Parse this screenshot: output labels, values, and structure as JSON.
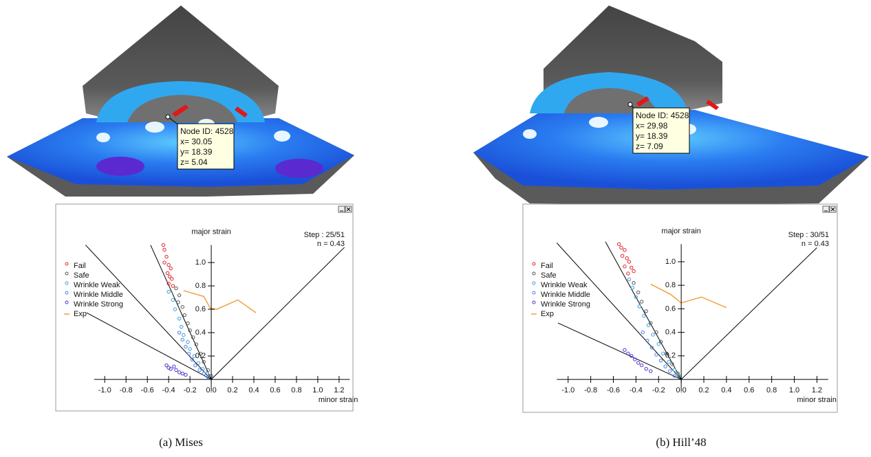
{
  "renders": [
    {
      "tooltip": [
        "Node ID: 4528",
        "x= 30.05",
        "y= 18.39",
        "z= 5.04"
      ]
    },
    {
      "tooltip": [
        "Node ID: 4528",
        "x= 29.98",
        "y= 18.39",
        "z= 7.09"
      ]
    }
  ],
  "captions": [
    "(a) Mises",
    "(b) Hill’48"
  ],
  "chart_data": [
    {
      "type": "scatter",
      "x_label": "minor strain",
      "y_label": "major strain",
      "annotations": [
        "Step : 25/51",
        "n = 0.43"
      ],
      "xlim": [
        -1.46,
        1.33
      ],
      "ylim": [
        -0.27,
        1.5
      ],
      "xticks": [
        {
          "value": -1,
          "label": "-1.0"
        },
        -0.8,
        -0.6,
        -0.4,
        -0.2,
        {
          "value": 0,
          "label": "0.0"
        },
        0.2,
        0.4,
        0.6,
        0.8,
        {
          "value": 1,
          "label": "1.0"
        },
        1.2
      ],
      "yticks": [
        0.2,
        0.4,
        0.6,
        0.8,
        {
          "value": 1,
          "label": "1.0"
        }
      ],
      "reference_lines": [
        {
          "x": [
            0,
            1.25
          ],
          "y": [
            0,
            1.13
          ]
        },
        {
          "x": [
            0,
            -0.57
          ],
          "y": [
            0,
            1.15
          ]
        },
        {
          "x": [
            0,
            -1.18
          ],
          "y": [
            0,
            1.15
          ]
        },
        {
          "x": [
            0,
            -1.17
          ],
          "y": [
            0,
            0.57
          ]
        }
      ],
      "series": [
        {
          "name": "Fail",
          "color": "#e0202a",
          "x": [
            -0.45,
            -0.44,
            -0.42,
            -0.44,
            -0.4,
            -0.38,
            -0.41,
            -0.39,
            -0.37,
            -0.4,
            -0.36
          ],
          "values": [
            1.15,
            1.11,
            1.05,
            1.0,
            0.98,
            0.95,
            0.91,
            0.88,
            0.86,
            0.82,
            0.8
          ]
        },
        {
          "name": "Safe",
          "color": "#555555",
          "x": [
            -0.33,
            -0.3,
            -0.31,
            -0.27,
            -0.25,
            -0.22,
            -0.2,
            -0.17,
            -0.14,
            -0.1,
            -0.07,
            -0.03,
            0.0
          ],
          "values": [
            0.78,
            0.72,
            0.66,
            0.62,
            0.55,
            0.48,
            0.42,
            0.36,
            0.3,
            0.22,
            0.15,
            0.08,
            0.03
          ]
        },
        {
          "name": "Wrinkle Weak",
          "color": "#3aa0e0",
          "x": [
            -0.4,
            -0.36,
            -0.34,
            -0.3,
            -0.28,
            -0.26,
            -0.22,
            -0.2,
            -0.16,
            -0.12,
            -0.08,
            -0.04
          ],
          "values": [
            0.75,
            0.68,
            0.6,
            0.52,
            0.45,
            0.38,
            0.32,
            0.26,
            0.2,
            0.14,
            0.09,
            0.05
          ]
        },
        {
          "name": "Wrinkle Middle",
          "color": "#4a7cf0",
          "x": [
            -0.3,
            -0.27,
            -0.24,
            -0.21,
            -0.18,
            -0.15,
            -0.11,
            -0.07,
            -0.03
          ],
          "values": [
            0.4,
            0.34,
            0.28,
            0.22,
            0.17,
            0.12,
            0.08,
            0.05,
            0.02
          ]
        },
        {
          "name": "Wrinkle Strong",
          "color": "#5030d0",
          "x": [
            -0.42,
            -0.4,
            -0.38,
            -0.35,
            -0.33,
            -0.3,
            -0.27,
            -0.24
          ],
          "values": [
            0.12,
            0.1,
            0.09,
            0.11,
            0.08,
            0.06,
            0.05,
            0.04
          ]
        },
        {
          "name": "Exp",
          "color": "#f0a040",
          "type": "line",
          "x": [
            -0.26,
            -0.07,
            -0.01,
            0.05,
            0.25,
            0.42
          ],
          "values": [
            0.76,
            0.71,
            0.61,
            0.6,
            0.68,
            0.57
          ]
        }
      ]
    },
    {
      "type": "scatter",
      "x_label": "minor strain",
      "y_label": "major strain",
      "annotations": [
        "Step : 30/51",
        "n = 0.43"
      ],
      "xlim": [
        -1.4,
        1.38
      ],
      "ylim": [
        -0.28,
        1.49
      ],
      "xticks": [
        {
          "value": -1,
          "label": "-1.0"
        },
        -0.8,
        -0.6,
        -0.4,
        -0.2,
        {
          "value": 0,
          "label": "0.0"
        },
        0.2,
        0.4,
        0.6,
        0.8,
        {
          "value": 1,
          "label": "1.0"
        },
        1.2
      ],
      "yticks": [
        0.2,
        0.4,
        0.6,
        0.8,
        {
          "value": 1,
          "label": "1.0"
        }
      ],
      "reference_lines": [
        {
          "x": [
            0,
            1.2
          ],
          "y": [
            0,
            1.12
          ]
        },
        {
          "x": [
            0,
            -0.67
          ],
          "y": [
            0,
            1.17
          ]
        },
        {
          "x": [
            0,
            -1.1
          ],
          "y": [
            0,
            1.16
          ]
        },
        {
          "x": [
            0,
            -1.09
          ],
          "y": [
            0,
            0.48
          ]
        }
      ],
      "series": [
        {
          "name": "Fail",
          "color": "#e0202a",
          "x": [
            -0.55,
            -0.53,
            -0.5,
            -0.52,
            -0.48,
            -0.46,
            -0.5,
            -0.44,
            -0.47,
            -0.42
          ],
          "values": [
            1.15,
            1.12,
            1.1,
            1.05,
            1.03,
            1.0,
            0.96,
            0.95,
            0.9,
            0.92
          ]
        },
        {
          "name": "Safe",
          "color": "#555555",
          "x": [
            -0.42,
            -0.38,
            -0.35,
            -0.31,
            -0.27,
            -0.22,
            -0.18,
            -0.13,
            -0.08,
            -0.03
          ],
          "values": [
            0.82,
            0.74,
            0.66,
            0.58,
            0.48,
            0.4,
            0.32,
            0.22,
            0.13,
            0.05
          ]
        },
        {
          "name": "Wrinkle Weak",
          "color": "#3aa0e0",
          "x": [
            -0.46,
            -0.43,
            -0.4,
            -0.37,
            -0.33,
            -0.29,
            -0.25,
            -0.2,
            -0.16,
            -0.11,
            -0.06,
            -0.02
          ],
          "values": [
            0.85,
            0.78,
            0.7,
            0.62,
            0.54,
            0.46,
            0.38,
            0.3,
            0.22,
            0.15,
            0.08,
            0.03
          ]
        },
        {
          "name": "Wrinkle Middle",
          "color": "#4a7cf0",
          "x": [
            -0.34,
            -0.3,
            -0.26,
            -0.22,
            -0.18,
            -0.14,
            -0.1,
            -0.06
          ],
          "values": [
            0.4,
            0.33,
            0.27,
            0.21,
            0.16,
            0.11,
            0.07,
            0.03
          ]
        },
        {
          "name": "Wrinkle Strong",
          "color": "#5030d0",
          "x": [
            -0.5,
            -0.47,
            -0.44,
            -0.41,
            -0.38,
            -0.35,
            -0.31,
            -0.27
          ],
          "values": [
            0.25,
            0.22,
            0.2,
            0.17,
            0.14,
            0.12,
            0.09,
            0.07
          ]
        },
        {
          "name": "Exp",
          "color": "#f0a040",
          "type": "line",
          "x": [
            -0.27,
            -0.09,
            0.0,
            0.18,
            0.4
          ],
          "values": [
            0.81,
            0.72,
            0.65,
            0.7,
            0.61
          ]
        }
      ]
    }
  ]
}
